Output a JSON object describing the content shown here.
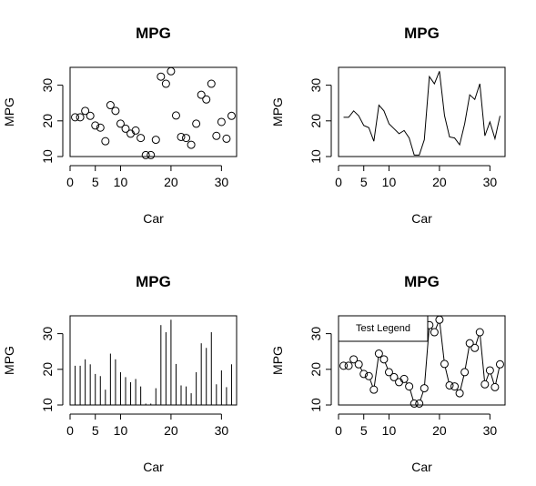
{
  "chart_data": [
    {
      "type": "scatter",
      "style": "points",
      "title": "MPG",
      "xlabel": "Car",
      "ylabel": "MPG",
      "xlim": [
        0,
        33
      ],
      "ylim": [
        10,
        35
      ],
      "xticks": [
        0,
        10,
        20,
        30
      ],
      "xticks_minor": [
        5
      ],
      "yticks": [
        10,
        20,
        30
      ],
      "x": [
        1,
        2,
        3,
        4,
        5,
        6,
        7,
        8,
        9,
        10,
        11,
        12,
        13,
        14,
        15,
        16,
        17,
        18,
        19,
        20,
        21,
        22,
        23,
        24,
        25,
        26,
        27,
        28,
        29,
        30,
        31,
        32
      ],
      "values": [
        21.0,
        21.0,
        22.8,
        21.4,
        18.7,
        18.1,
        14.3,
        24.4,
        22.8,
        19.2,
        17.8,
        16.4,
        17.3,
        15.2,
        10.4,
        10.4,
        14.7,
        32.4,
        30.4,
        33.9,
        21.5,
        15.5,
        15.2,
        13.3,
        19.2,
        27.3,
        26.0,
        30.4,
        15.8,
        19.7,
        15.0,
        21.4
      ]
    },
    {
      "type": "line",
      "style": "line",
      "title": "MPG",
      "xlabel": "Car",
      "ylabel": "MPG",
      "xlim": [
        0,
        33
      ],
      "ylim": [
        10,
        35
      ],
      "xticks": [
        0,
        10,
        20,
        30
      ],
      "xticks_minor": [
        5
      ],
      "yticks": [
        10,
        20,
        30
      ],
      "x": [
        1,
        2,
        3,
        4,
        5,
        6,
        7,
        8,
        9,
        10,
        11,
        12,
        13,
        14,
        15,
        16,
        17,
        18,
        19,
        20,
        21,
        22,
        23,
        24,
        25,
        26,
        27,
        28,
        29,
        30,
        31,
        32
      ],
      "values": [
        21.0,
        21.0,
        22.8,
        21.4,
        18.7,
        18.1,
        14.3,
        24.4,
        22.8,
        19.2,
        17.8,
        16.4,
        17.3,
        15.2,
        10.4,
        10.4,
        14.7,
        32.4,
        30.4,
        33.9,
        21.5,
        15.5,
        15.2,
        13.3,
        19.2,
        27.3,
        26.0,
        30.4,
        15.8,
        19.7,
        15.0,
        21.4
      ]
    },
    {
      "type": "bar",
      "style": "hist",
      "title": "MPG",
      "xlabel": "Car",
      "ylabel": "MPG",
      "xlim": [
        0,
        33
      ],
      "ylim": [
        10,
        35
      ],
      "xticks": [
        0,
        10,
        20,
        30
      ],
      "xticks_minor": [
        5
      ],
      "yticks": [
        10,
        20,
        30
      ],
      "x": [
        1,
        2,
        3,
        4,
        5,
        6,
        7,
        8,
        9,
        10,
        11,
        12,
        13,
        14,
        15,
        16,
        17,
        18,
        19,
        20,
        21,
        22,
        23,
        24,
        25,
        26,
        27,
        28,
        29,
        30,
        31,
        32
      ],
      "values": [
        21.0,
        21.0,
        22.8,
        21.4,
        18.7,
        18.1,
        14.3,
        24.4,
        22.8,
        19.2,
        17.8,
        16.4,
        17.3,
        15.2,
        10.4,
        10.4,
        14.7,
        32.4,
        30.4,
        33.9,
        21.5,
        15.5,
        15.2,
        13.3,
        19.2,
        27.3,
        26.0,
        30.4,
        15.8,
        19.7,
        15.0,
        21.4
      ]
    },
    {
      "type": "line",
      "style": "both",
      "title": "MPG",
      "xlabel": "Car",
      "ylabel": "MPG",
      "xlim": [
        0,
        33
      ],
      "ylim": [
        10,
        35
      ],
      "xticks": [
        0,
        10,
        20,
        30
      ],
      "xticks_minor": [
        5
      ],
      "yticks": [
        10,
        20,
        30
      ],
      "legend": {
        "text": "Test Legend",
        "position": "top-left"
      },
      "x": [
        1,
        2,
        3,
        4,
        5,
        6,
        7,
        8,
        9,
        10,
        11,
        12,
        13,
        14,
        15,
        16,
        17,
        18,
        19,
        20,
        21,
        22,
        23,
        24,
        25,
        26,
        27,
        28,
        29,
        30,
        31,
        32
      ],
      "values": [
        21.0,
        21.0,
        22.8,
        21.4,
        18.7,
        18.1,
        14.3,
        24.4,
        22.8,
        19.2,
        17.8,
        16.4,
        17.3,
        15.2,
        10.4,
        10.4,
        14.7,
        32.4,
        30.4,
        33.9,
        21.5,
        15.5,
        15.2,
        13.3,
        19.2,
        27.3,
        26.0,
        30.4,
        15.8,
        19.7,
        15.0,
        21.4
      ]
    }
  ]
}
